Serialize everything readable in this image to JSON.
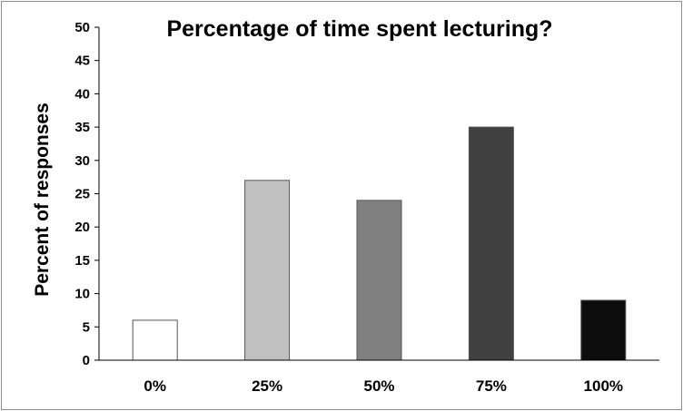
{
  "chart_data": {
    "type": "bar",
    "title": "Percentage of time spent lecturing?",
    "xlabel": "",
    "ylabel": "Percent of responses",
    "categories": [
      "0%",
      "25%",
      "50%",
      "75%",
      "100%"
    ],
    "values": [
      6,
      27,
      24,
      35,
      9
    ],
    "bar_colors": [
      "#ffffff",
      "#c0c0c0",
      "#808080",
      "#404040",
      "#0c0c0c"
    ],
    "ylim": [
      0,
      50
    ],
    "yticks": [
      "0",
      "5",
      "10",
      "15",
      "20",
      "25",
      "30",
      "35",
      "40",
      "45",
      "50"
    ],
    "grid": false,
    "legend": "none"
  }
}
